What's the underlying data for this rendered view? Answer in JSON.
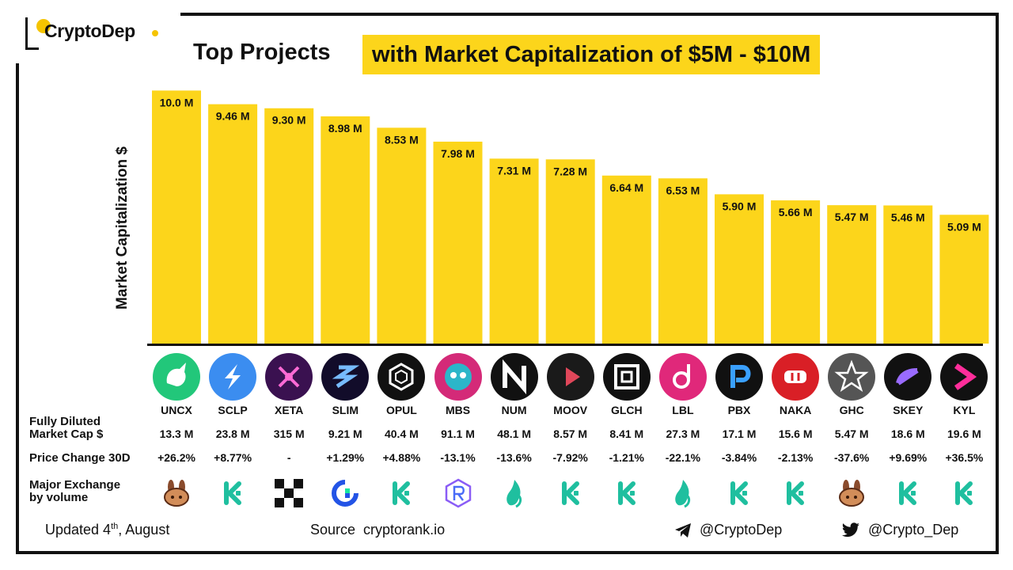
{
  "brand": {
    "name": "CryptoDep"
  },
  "title": {
    "part1": "Top Projects",
    "part2": "with Market Capitalization of $5M - $10M"
  },
  "colors": {
    "bar": "#fcd51b",
    "highlight": "#fcd51b",
    "dot": "#f5c400",
    "kucoin": "#1fbf9f",
    "axis": "#111111"
  },
  "chart_data": {
    "type": "bar",
    "title": "Top Projects with Market Capitalization of $5M - $10M",
    "ylabel": "Market Capitalization $",
    "xlabel": "",
    "ylim": [
      0,
      10.7
    ],
    "unit": "M",
    "categories": [
      "UNCX",
      "SCLP",
      "XETA",
      "SLIM",
      "OPUL",
      "MBS",
      "NUM",
      "MOOV",
      "GLCH",
      "LBL",
      "PBX",
      "NAKA",
      "GHC",
      "SKEY",
      "KYL"
    ],
    "values": [
      10.0,
      9.46,
      9.3,
      8.98,
      8.53,
      7.98,
      7.31,
      7.28,
      6.64,
      6.53,
      5.9,
      5.66,
      5.47,
      5.46,
      5.09
    ],
    "labels": [
      "10.0 M",
      "9.46 M",
      "9.30 M",
      "8.98 M",
      "8.53 M",
      "7.98 M",
      "7.31 M",
      "7.28 M",
      "6.64 M",
      "6.53 M",
      "5.90 M",
      "5.66 M",
      "5.47 M",
      "5.46 M",
      "5.09 M"
    ]
  },
  "tokens": [
    {
      "ticker": "UNCX",
      "fdmc": "13.3 M",
      "change": "+26.2%",
      "exchange": "pancakeswap",
      "icon": "unicorn-icon",
      "icon_bg": "#22c77a"
    },
    {
      "ticker": "SCLP",
      "fdmc": "23.8 M",
      "change": "+8.77%",
      "exchange": "kucoin",
      "icon": "scallop-icon",
      "icon_bg": "#3b8df0"
    },
    {
      "ticker": "XETA",
      "fdmc": "315 M",
      "change": "-",
      "exchange": "okx",
      "icon": "xeta-icon",
      "icon_bg": "#3a1150"
    },
    {
      "ticker": "SLIM",
      "fdmc": "9.21 M",
      "change": "+1.29%",
      "exchange": "gateio",
      "icon": "solanium-icon",
      "icon_bg": "#120c2a"
    },
    {
      "ticker": "OPUL",
      "fdmc": "40.4 M",
      "change": "+4.88%",
      "exchange": "kucoin",
      "icon": "opulous-icon",
      "icon_bg": "#111111"
    },
    {
      "ticker": "MBS",
      "fdmc": "91.1 M",
      "change": "-13.1%",
      "exchange": "raydium",
      "icon": "monkeyball-icon",
      "icon_bg": "#d42a78"
    },
    {
      "ticker": "NUM",
      "fdmc": "48.1 M",
      "change": "-13.6%",
      "exchange": "huobi",
      "icon": "numbers-icon",
      "icon_bg": "#111111"
    },
    {
      "ticker": "MOOV",
      "fdmc": "8.57 M",
      "change": "-7.92%",
      "exchange": "kucoin",
      "icon": "dotmoovs-icon",
      "icon_bg": "#1a1a1a"
    },
    {
      "ticker": "GLCH",
      "fdmc": "8.41 M",
      "change": "-1.21%",
      "exchange": "kucoin",
      "icon": "glitch-icon",
      "icon_bg": "#111111"
    },
    {
      "ticker": "LBL",
      "fdmc": "27.3 M",
      "change": "-22.1%",
      "exchange": "huobi",
      "icon": "label-icon",
      "icon_bg": "#e0287a"
    },
    {
      "ticker": "PBX",
      "fdmc": "17.1 M",
      "change": "-3.84%",
      "exchange": "kucoin",
      "icon": "paribus-icon",
      "icon_bg": "#111111"
    },
    {
      "ticker": "NAKA",
      "fdmc": "15.6 M",
      "change": "-2.13%",
      "exchange": "kucoin",
      "icon": "nakamoto-icon",
      "icon_bg": "#d91f26"
    },
    {
      "ticker": "GHC",
      "fdmc": "5.47 M",
      "change": "-37.6%",
      "exchange": "pancakeswap",
      "icon": "galaxy-heroes-icon",
      "icon_bg": "#555555"
    },
    {
      "ticker": "SKEY",
      "fdmc": "18.6 M",
      "change": "+9.69%",
      "exchange": "kucoin",
      "icon": "skey-icon",
      "icon_bg": "#111111"
    },
    {
      "ticker": "KYL",
      "fdmc": "19.6 M",
      "change": "+36.5%",
      "exchange": "kucoin",
      "icon": "kylin-icon",
      "icon_bg": "#111111"
    }
  ],
  "rows": {
    "fdmc_label_1": "Fully Diluted",
    "fdmc_label_2": "Market Cap $",
    "change_label": "Price Change 30D",
    "exchange_label_1": "Major Exchange",
    "exchange_label_2": "by volume"
  },
  "footer": {
    "updated_prefix": "Updated 4",
    "updated_sup": "th",
    "updated_suffix": ", August",
    "source": "Source  cryptorank.io",
    "telegram": "@CryptoDep",
    "twitter": "@Crypto_Dep"
  }
}
